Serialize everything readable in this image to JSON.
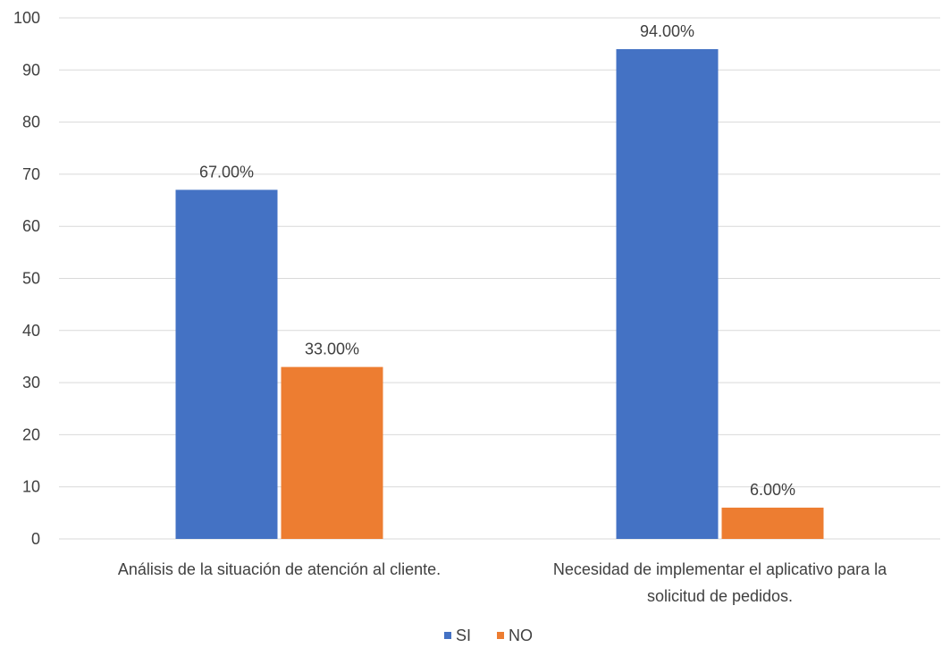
{
  "chart_data": {
    "type": "bar",
    "categories": [
      "Análisis de la situación de atención al cliente.",
      "Necesidad de implementar el aplicativo para la solicitud de pedidos."
    ],
    "category_label_lines": [
      [
        "Análisis de la situación de atención al cliente."
      ],
      [
        "Necesidad de implementar el aplicativo para la",
        "solicitud de pedidos."
      ]
    ],
    "series": [
      {
        "name": "SI",
        "values": [
          67,
          94
        ],
        "labels": [
          "67.00%",
          "94.00%"
        ],
        "color": "#4472C4"
      },
      {
        "name": "NO",
        "values": [
          33,
          6
        ],
        "labels": [
          "33.00%",
          "6.00%"
        ],
        "color": "#ED7D31"
      }
    ],
    "title": "",
    "xlabel": "",
    "ylabel": "",
    "ylim": [
      0,
      100
    ],
    "yticks": [
      "0",
      "10",
      "20",
      "30",
      "40",
      "50",
      "60",
      "70",
      "80",
      "90",
      "100"
    ],
    "grid": true,
    "legend_position": "bottom-center",
    "gridline_color": "#D9D9D9",
    "text_color": "#404040"
  }
}
